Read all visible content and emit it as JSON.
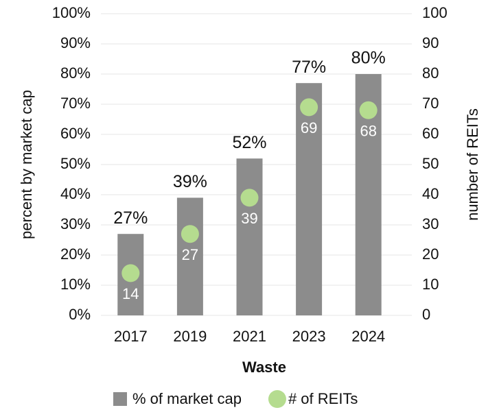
{
  "chart_data": {
    "type": "bar",
    "xlabel": "Waste",
    "ylabel": "percent by market cap",
    "y2label": "number of REITs",
    "categories": [
      "2017",
      "2019",
      "2021",
      "2023",
      "2024"
    ],
    "series": [
      {
        "name": "% of market cap",
        "type": "bar",
        "color": "#8c8c8c",
        "values": [
          27,
          39,
          52,
          77,
          80
        ],
        "value_labels": [
          "27%",
          "39%",
          "52%",
          "77%",
          "80%"
        ]
      },
      {
        "name": "# of REITs",
        "type": "scatter",
        "axis": "y2",
        "color": "#b5dc8f",
        "values": [
          14,
          27,
          39,
          69,
          68
        ]
      }
    ],
    "ylim": [
      0,
      100
    ],
    "yticks": [
      {
        "value": 0,
        "label": "0%"
      },
      {
        "value": 10,
        "label": "10%"
      },
      {
        "value": 20,
        "label": "20%"
      },
      {
        "value": 30,
        "label": "30%"
      },
      {
        "value": 40,
        "label": "40%"
      },
      {
        "value": 50,
        "label": "50%"
      },
      {
        "value": 60,
        "label": "60%"
      },
      {
        "value": 70,
        "label": "70%"
      },
      {
        "value": 80,
        "label": "80%"
      },
      {
        "value": 90,
        "label": "90%"
      },
      {
        "value": 100,
        "label": "100%"
      }
    ],
    "y2lim": [
      0,
      100
    ],
    "y2ticks": [
      0,
      10,
      20,
      30,
      40,
      50,
      60,
      70,
      80,
      90,
      100
    ],
    "grid": true,
    "legend": "bottom"
  }
}
